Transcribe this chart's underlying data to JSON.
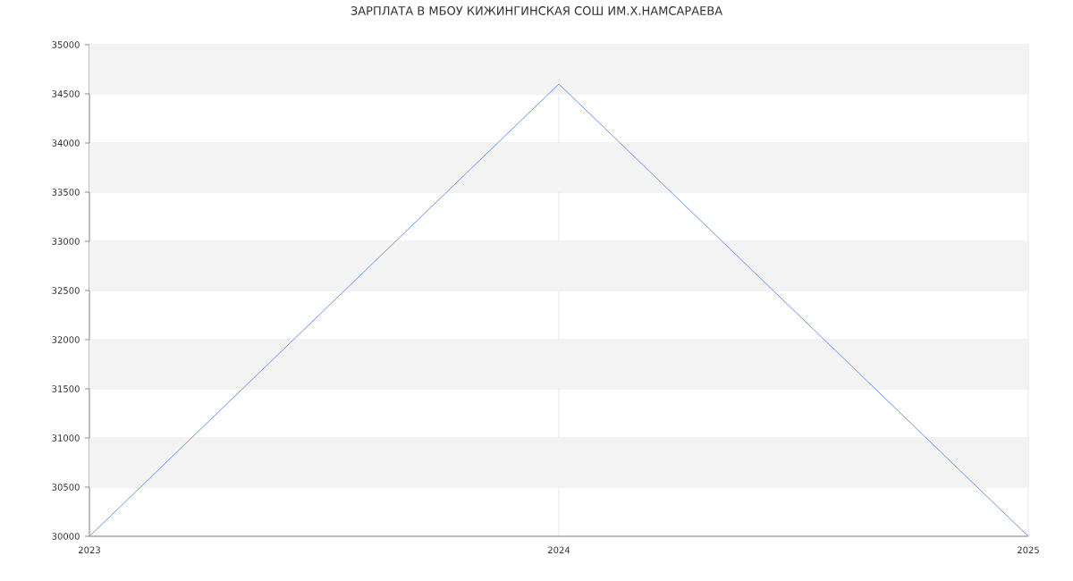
{
  "chart_data": {
    "type": "line",
    "title": "ЗАРПЛАТА В МБОУ КИЖИНГИНСКАЯ СОШ ИМ.Х.НАМСАРАЕВА",
    "categories": [
      "2023",
      "2024",
      "2025"
    ],
    "values": [
      30000,
      34600,
      30000
    ],
    "color": "#6495ed",
    "ylim": [
      30000,
      35000
    ],
    "yticks": [
      30000,
      30500,
      31000,
      31500,
      32000,
      32500,
      33000,
      33500,
      34000,
      34500,
      35000
    ],
    "grid": true
  }
}
